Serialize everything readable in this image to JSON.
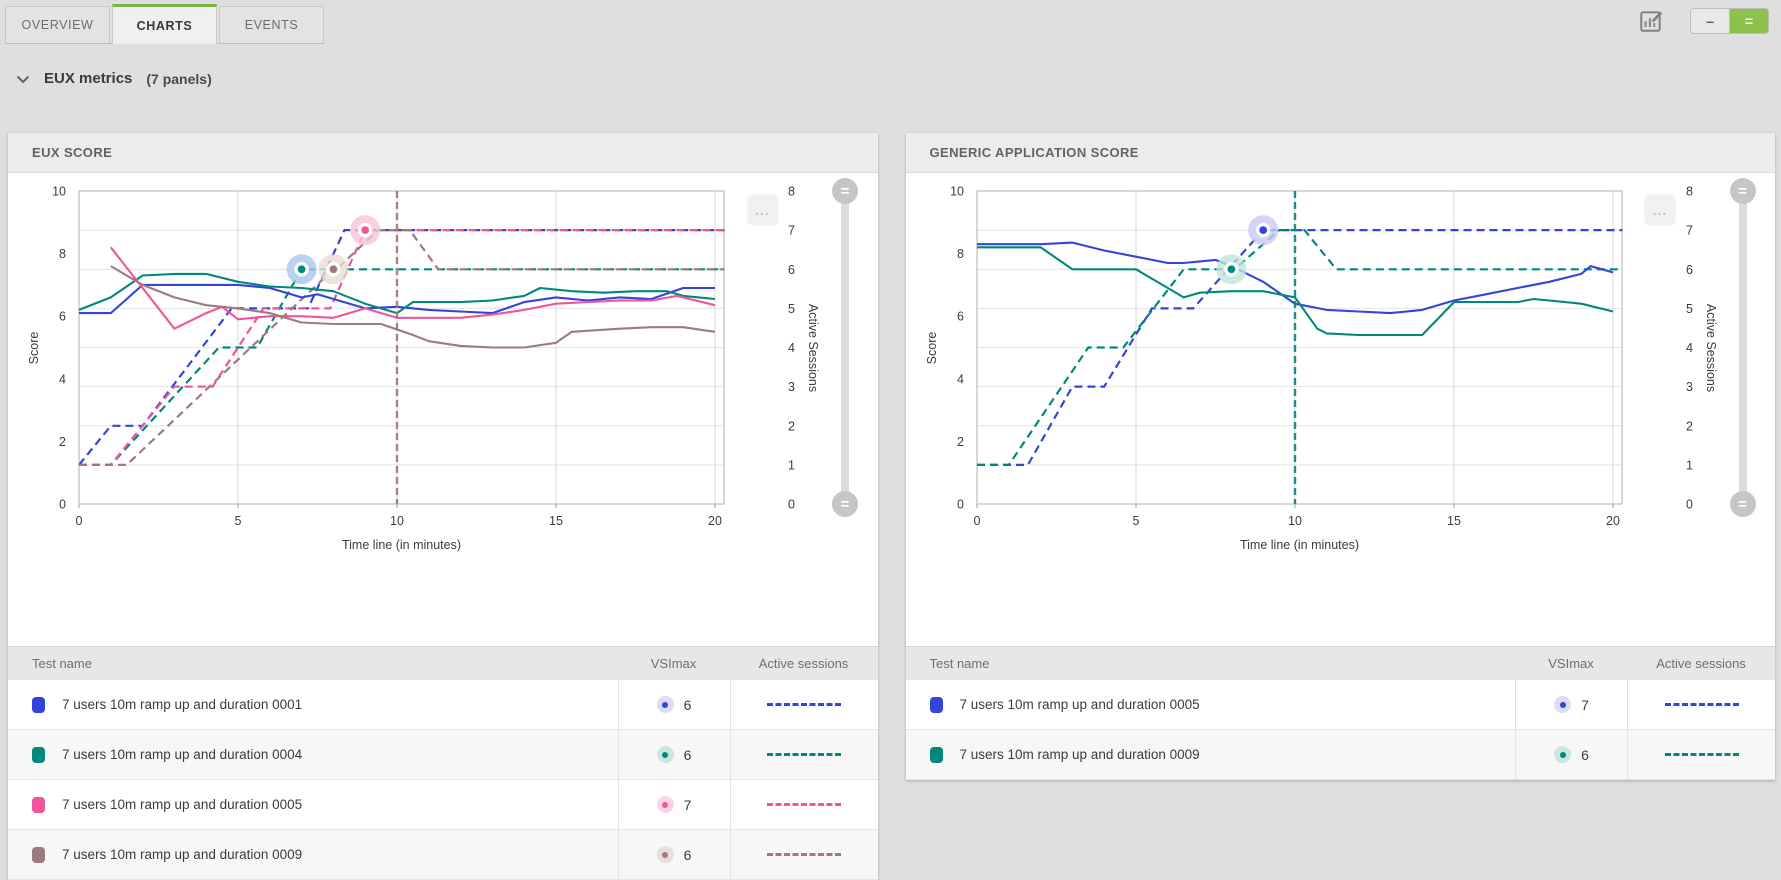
{
  "tabs": [
    {
      "label": "OVERVIEW",
      "active": false
    },
    {
      "label": "CHARTS",
      "active": true
    },
    {
      "label": "EVENTS",
      "active": false
    }
  ],
  "toolbar": {
    "edit_icon": "chart-edit-icon",
    "layout_single_label": "–",
    "layout_two_label": "=",
    "accent_green": "#8bc34a",
    "chart_menu_label": "..."
  },
  "section": {
    "title": "EUX metrics",
    "count": "(7 panels)",
    "collapse_icon": "chevron-down-icon"
  },
  "panels": [
    {
      "title": "EUX SCORE",
      "table_headers": [
        "Test name",
        "VSImax",
        "Active sessions"
      ]
    },
    {
      "title": "GENERIC APPLICATION SCORE",
      "table_headers": [
        "Test name",
        "VSImax",
        "Active sessions"
      ]
    }
  ],
  "chart_data": [
    {
      "type": "line",
      "title": "EUX SCORE",
      "xlabel": "Time line (in minutes)",
      "ylabel_left": "Score",
      "ylabel_right": "Active Sessions",
      "x_ticks": [
        0,
        5,
        10,
        15,
        20
      ],
      "y_left_ticks": [
        0,
        2,
        4,
        6,
        8,
        10
      ],
      "y_right_ticks": [
        0,
        1,
        2,
        3,
        4,
        5,
        6,
        7,
        8
      ],
      "xlim": [
        0,
        20.3
      ],
      "ylim_left": [
        0,
        10
      ],
      "ylim_right": [
        0,
        8
      ],
      "grid": "horizontal line per right-axis unit, vertical at x ticks",
      "vsimax_line": {
        "x": 10,
        "color": "#9d7a7d"
      },
      "series": [
        {
          "name": "7 users 10m ramp up and duration 0001",
          "color": "#3444d8",
          "pale": "#dcdcf7",
          "vsimax": 6,
          "score": [
            [
              0,
              6.1
            ],
            [
              1,
              6.1
            ],
            [
              2,
              7.0
            ],
            [
              3,
              7.0
            ],
            [
              4,
              7.0
            ],
            [
              5,
              7.0
            ],
            [
              6,
              6.9
            ],
            [
              7,
              6.6
            ],
            [
              7.5,
              6.7
            ],
            [
              9,
              6.25
            ],
            [
              10,
              6.3
            ],
            [
              11,
              6.2
            ],
            [
              12,
              6.15
            ],
            [
              13,
              6.1
            ],
            [
              14,
              6.45
            ],
            [
              15,
              6.6
            ],
            [
              16,
              6.5
            ],
            [
              17,
              6.6
            ],
            [
              18,
              6.55
            ],
            [
              19,
              6.9
            ],
            [
              20,
              6.9
            ]
          ],
          "active_sessions": [
            [
              0,
              1
            ],
            [
              1,
              2
            ],
            [
              2,
              2
            ],
            [
              4.8,
              5
            ],
            [
              7.2,
              5
            ],
            [
              8.35,
              7
            ],
            [
              20.3,
              7
            ]
          ]
        },
        {
          "name": "7 users 10m ramp up and duration 0004",
          "color": "#00897b",
          "pale": "#c8e6e2",
          "vsimax": 6,
          "score": [
            [
              0,
              6.2
            ],
            [
              1,
              6.6
            ],
            [
              2,
              7.3
            ],
            [
              3,
              7.35
            ],
            [
              4,
              7.35
            ],
            [
              5,
              7.1
            ],
            [
              6,
              6.95
            ],
            [
              7,
              6.9
            ],
            [
              8,
              6.8
            ],
            [
              9,
              6.4
            ],
            [
              10,
              6.1
            ],
            [
              10.5,
              6.45
            ],
            [
              12,
              6.45
            ],
            [
              13,
              6.5
            ],
            [
              14,
              6.65
            ],
            [
              14.5,
              6.9
            ],
            [
              15.5,
              6.8
            ],
            [
              16.5,
              6.75
            ],
            [
              17.5,
              6.8
            ],
            [
              18.5,
              6.8
            ],
            [
              19,
              6.65
            ],
            [
              20,
              6.55
            ]
          ],
          "active_sessions": [
            [
              0,
              1
            ],
            [
              1,
              1
            ],
            [
              4.4,
              4
            ],
            [
              5.6,
              4
            ],
            [
              7,
              6
            ],
            [
              20.3,
              6
            ]
          ]
        },
        {
          "name": "7 users 10m ramp up and duration 0005",
          "color": "#ef549d",
          "pale": "#fbd5e7",
          "vsimax": 7,
          "score": [
            [
              1,
              8.2
            ],
            [
              2,
              6.9
            ],
            [
              3,
              5.6
            ],
            [
              4,
              6.1
            ],
            [
              4.5,
              6.3
            ],
            [
              5,
              5.9
            ],
            [
              6,
              6.0
            ],
            [
              7,
              6.0
            ],
            [
              8,
              5.95
            ],
            [
              9,
              6.25
            ],
            [
              10,
              5.95
            ],
            [
              12,
              5.95
            ],
            [
              13,
              6.05
            ],
            [
              14,
              6.2
            ],
            [
              15,
              6.4
            ],
            [
              16,
              6.45
            ],
            [
              17,
              6.5
            ],
            [
              18,
              6.5
            ],
            [
              18.8,
              6.65
            ],
            [
              20,
              6.35
            ]
          ],
          "active_sessions": [
            [
              0,
              1
            ],
            [
              1,
              1
            ],
            [
              3,
              3
            ],
            [
              4.2,
              3
            ],
            [
              5.8,
              5
            ],
            [
              7.9,
              5
            ],
            [
              9,
              7
            ],
            [
              20.3,
              7
            ]
          ]
        },
        {
          "name": "7 users 10m ramp up and duration 0009",
          "color": "#9d7a7d",
          "pale": "#e9dede",
          "vsimax": 6,
          "score": [
            [
              1,
              7.6
            ],
            [
              2,
              7.0
            ],
            [
              3,
              6.6
            ],
            [
              4,
              6.35
            ],
            [
              5,
              6.25
            ],
            [
              6,
              6.1
            ],
            [
              7,
              5.8
            ],
            [
              8,
              5.75
            ],
            [
              9.5,
              5.75
            ],
            [
              10.5,
              5.4
            ],
            [
              11,
              5.2
            ],
            [
              12,
              5.05
            ],
            [
              13,
              5.0
            ],
            [
              14,
              5.0
            ],
            [
              15,
              5.15
            ],
            [
              15.5,
              5.5
            ],
            [
              17,
              5.6
            ],
            [
              18,
              5.65
            ],
            [
              19,
              5.65
            ],
            [
              20,
              5.5
            ]
          ],
          "active_sessions": [
            [
              0,
              1
            ],
            [
              1.5,
              1
            ],
            [
              8,
              6
            ],
            [
              8.1,
              6
            ],
            [
              9.4,
              7
            ],
            [
              10.4,
              7
            ],
            [
              11.3,
              6
            ],
            [
              20.3,
              6
            ]
          ]
        }
      ],
      "markers": [
        {
          "x": 7,
          "sessions": 6,
          "dot": "#00897b",
          "halo": "#a9c7e8"
        },
        {
          "x": 8,
          "sessions": 6,
          "dot": "#9d7a7d",
          "halo": "#e8ded2"
        },
        {
          "x": 9,
          "sessions": 7,
          "dot": "#ef549d",
          "halo": "#f9c4da"
        }
      ]
    },
    {
      "type": "line",
      "title": "GENERIC APPLICATION SCORE",
      "xlabel": "Time line (in minutes)",
      "ylabel_left": "Score",
      "ylabel_right": "Active Sessions",
      "x_ticks": [
        0,
        5,
        10,
        15,
        20
      ],
      "y_left_ticks": [
        0,
        2,
        4,
        6,
        8,
        10
      ],
      "y_right_ticks": [
        0,
        1,
        2,
        3,
        4,
        5,
        6,
        7,
        8
      ],
      "xlim": [
        0,
        20.3
      ],
      "ylim_left": [
        0,
        10
      ],
      "ylim_right": [
        0,
        8
      ],
      "grid": "horizontal line per right-axis unit, vertical at x ticks",
      "vsimax_line": {
        "x": 10,
        "color": "#00897b"
      },
      "series": [
        {
          "name": "7 users 10m ramp up and duration 0005",
          "color": "#3444d8",
          "pale": "#dcdcf7",
          "vsimax": 7,
          "score": [
            [
              0,
              8.3
            ],
            [
              2,
              8.3
            ],
            [
              3,
              8.35
            ],
            [
              4,
              8.1
            ],
            [
              5,
              7.9
            ],
            [
              6,
              7.7
            ],
            [
              6.5,
              7.7
            ],
            [
              7.5,
              7.8
            ],
            [
              8,
              7.6
            ],
            [
              9,
              7.1
            ],
            [
              10,
              6.4
            ],
            [
              11,
              6.2
            ],
            [
              12,
              6.15
            ],
            [
              13,
              6.1
            ],
            [
              14,
              6.2
            ],
            [
              15,
              6.5
            ],
            [
              16,
              6.7
            ],
            [
              17,
              6.9
            ],
            [
              18,
              7.1
            ],
            [
              19,
              7.35
            ],
            [
              19.3,
              7.6
            ],
            [
              20,
              7.4
            ]
          ],
          "active_sessions": [
            [
              0,
              1
            ],
            [
              1.6,
              1
            ],
            [
              3,
              3
            ],
            [
              4,
              3
            ],
            [
              5.5,
              5
            ],
            [
              6.8,
              5
            ],
            [
              9,
              7
            ],
            [
              20.3,
              7
            ]
          ]
        },
        {
          "name": "7 users 10m ramp up and duration 0009",
          "color": "#00897b",
          "pale": "#c8e6e2",
          "vsimax": 6,
          "score": [
            [
              0,
              8.2
            ],
            [
              2,
              8.2
            ],
            [
              3,
              7.5
            ],
            [
              5,
              7.5
            ],
            [
              6,
              6.9
            ],
            [
              6.5,
              6.6
            ],
            [
              7,
              6.75
            ],
            [
              8,
              6.8
            ],
            [
              9,
              6.8
            ],
            [
              10,
              6.6
            ],
            [
              10.7,
              5.6
            ],
            [
              11,
              5.45
            ],
            [
              12,
              5.4
            ],
            [
              14,
              5.4
            ],
            [
              15,
              6.45
            ],
            [
              16,
              6.45
            ],
            [
              17,
              6.45
            ],
            [
              17.5,
              6.55
            ],
            [
              18,
              6.5
            ],
            [
              19,
              6.4
            ],
            [
              20,
              6.15
            ]
          ],
          "active_sessions": [
            [
              0,
              1
            ],
            [
              1,
              1
            ],
            [
              3.5,
              4
            ],
            [
              4.6,
              4
            ],
            [
              6.5,
              6
            ],
            [
              8.1,
              6
            ],
            [
              9.5,
              7
            ],
            [
              10.3,
              7
            ],
            [
              11.3,
              6
            ],
            [
              20.3,
              6
            ]
          ]
        }
      ],
      "markers": [
        {
          "x": 8,
          "sessions": 6,
          "dot": "#00897b",
          "halo": "#c2e2dc"
        },
        {
          "x": 9,
          "sessions": 7,
          "dot": "#3444d8",
          "halo": "#c7cbf2"
        }
      ]
    }
  ]
}
